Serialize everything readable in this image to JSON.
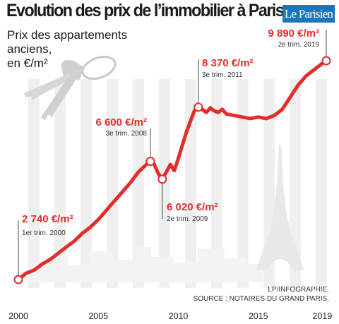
{
  "header": {
    "title": "Evolution des prix de l’immobilier à Paris",
    "logo_text": "Le Parisien"
  },
  "subtitle_lines": [
    "Prix des appartements anciens,",
    "en €/m²"
  ],
  "footer": {
    "credit": "LP/INFOGRAPHIE.",
    "source": "SOURCE : NOTAIRES DU GRAND PARIS."
  },
  "colors": {
    "line": "#e32d2a",
    "value_text": "#e32d2a",
    "stripes": "#efefef",
    "logo_bg": "#1b75bb"
  },
  "chart_data": {
    "type": "line",
    "title": "Evolution des prix de l’immobilier à Paris",
    "subtitle": "Prix des appartements anciens, en €/m²",
    "xlabel": "",
    "ylabel": "",
    "grid": false,
    "xlim": [
      2000,
      2019.5
    ],
    "ylim": [
      2000,
      11000
    ],
    "x_ticks": [
      "2000",
      "2005",
      "2010",
      "2015",
      "2019"
    ],
    "series": [
      {
        "points": [
          [
            2000.0,
            2740
          ],
          [
            2000.5,
            2950
          ],
          [
            2001.0,
            3050
          ],
          [
            2001.5,
            3250
          ],
          [
            2002.0,
            3400
          ],
          [
            2002.5,
            3600
          ],
          [
            2003.0,
            3800
          ],
          [
            2003.5,
            4000
          ],
          [
            2004.0,
            4250
          ],
          [
            2004.5,
            4450
          ],
          [
            2005.0,
            4700
          ],
          [
            2005.5,
            5000
          ],
          [
            2006.0,
            5300
          ],
          [
            2006.5,
            5600
          ],
          [
            2007.0,
            5900
          ],
          [
            2007.5,
            6250
          ],
          [
            2008.0,
            6500
          ],
          [
            2008.25,
            6600
          ],
          [
            2008.5,
            6500
          ],
          [
            2008.75,
            6200
          ],
          [
            2009.0,
            6020
          ],
          [
            2009.25,
            6250
          ],
          [
            2009.5,
            6500
          ],
          [
            2009.75,
            6300
          ],
          [
            2010.0,
            6700
          ],
          [
            2010.5,
            7550
          ],
          [
            2011.0,
            8250
          ],
          [
            2011.25,
            8370
          ],
          [
            2011.5,
            8300
          ],
          [
            2011.75,
            8200
          ],
          [
            2012.0,
            8350
          ],
          [
            2012.25,
            8250
          ],
          [
            2012.5,
            8200
          ],
          [
            2012.75,
            8300
          ],
          [
            2013.0,
            8150
          ],
          [
            2013.5,
            8100
          ],
          [
            2014.0,
            8050
          ],
          [
            2014.5,
            8000
          ],
          [
            2015.0,
            8050
          ],
          [
            2015.5,
            8000
          ],
          [
            2016.0,
            8100
          ],
          [
            2016.5,
            8300
          ],
          [
            2017.0,
            8700
          ],
          [
            2017.5,
            9100
          ],
          [
            2018.0,
            9400
          ],
          [
            2018.5,
            9600
          ],
          [
            2019.0,
            9800
          ],
          [
            2019.25,
            9890
          ]
        ]
      }
    ],
    "annotations": [
      {
        "x": 2000.0,
        "y": 2740,
        "value": "2 740 €/m²",
        "period": "1er trim. 2000"
      },
      {
        "x": 2008.25,
        "y": 6600,
        "value": "6 600 €/m²",
        "period": "3e trim. 2008"
      },
      {
        "x": 2009.0,
        "y": 6020,
        "value": "6 020 €/m²",
        "period": "2e trim. 2009"
      },
      {
        "x": 2011.25,
        "y": 8370,
        "value": "8 370 €/m²",
        "period": "3e trim. 2011"
      },
      {
        "x": 2019.25,
        "y": 9890,
        "value": "9 890 €/m²",
        "period": "2e trim. 2019"
      }
    ]
  }
}
